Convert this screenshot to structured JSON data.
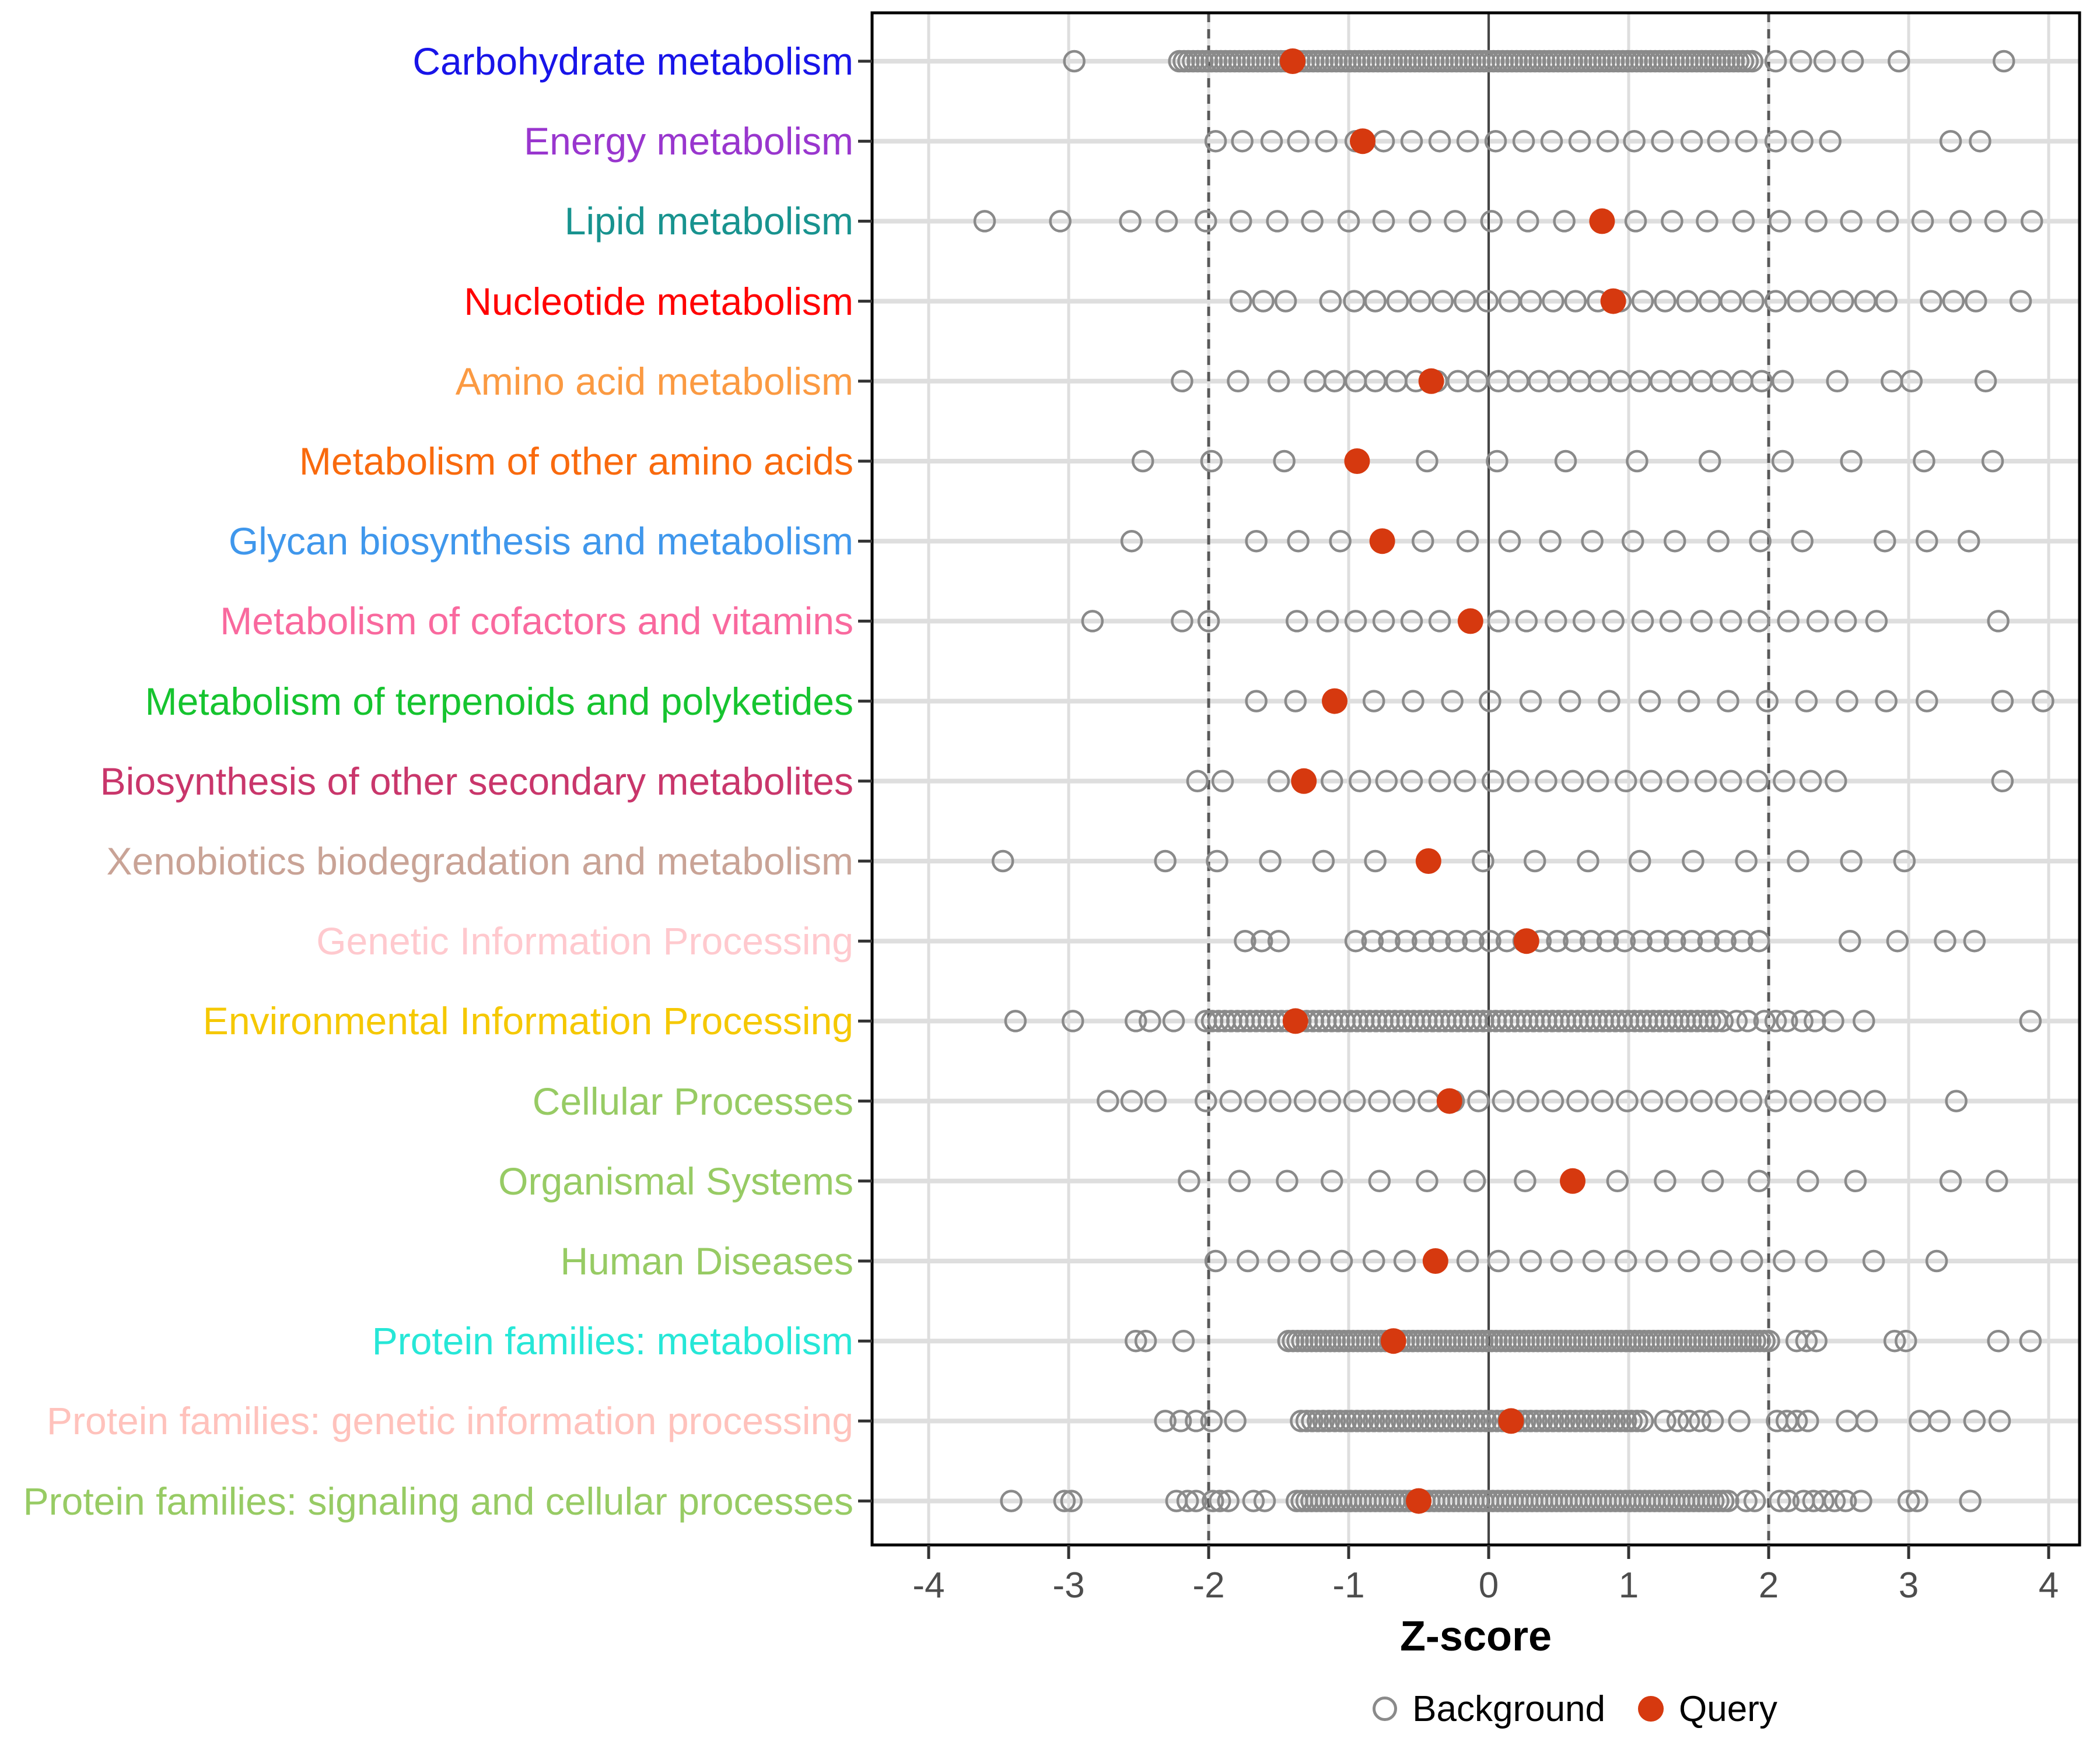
{
  "chart_data": {
    "type": "scatter",
    "title": "",
    "xlabel": "Z-score",
    "ylabel": "",
    "x_ticks": [
      -4,
      -3,
      -2,
      -1,
      0,
      1,
      2,
      3,
      4
    ],
    "xlim": [
      -4.4,
      4.23
    ],
    "grid": "major-both",
    "legend_position": "bottom",
    "reference_lines": {
      "zero_solid": 0,
      "dashed": [
        -2,
        2
      ]
    },
    "legend": {
      "background_label": "Background",
      "query_label": "Query"
    },
    "style_colors": {
      "query_dot": "#d6390f",
      "background_circle_stroke": "#8a8a8a",
      "grid_line": "#dedede",
      "dashed_line": "#585858",
      "zero_line": "#454545",
      "panel_border": "#000000",
      "tick_text": "#4d4d4d"
    },
    "categories": [
      {
        "label": "Carbohydrate metabolism",
        "color": "#1814e8",
        "query": -1.4,
        "bg_runs": [
          {
            "from": -2.21,
            "to": 1.9,
            "step": 0.033
          }
        ],
        "bg_points": [
          -2.96,
          2.05,
          2.23,
          2.4,
          2.6,
          2.93,
          3.68
        ]
      },
      {
        "label": "Energy metabolism",
        "color": "#9936ce",
        "query": -0.9,
        "bg_runs": [],
        "bg_points": [
          -1.95,
          -1.76,
          -1.55,
          -1.36,
          -1.16,
          -0.95,
          -0.75,
          -0.55,
          -0.35,
          -0.15,
          0.05,
          0.25,
          0.45,
          0.65,
          0.85,
          1.04,
          1.24,
          1.45,
          1.64,
          1.84,
          2.05,
          2.24,
          2.44,
          3.3,
          3.51
        ]
      },
      {
        "label": "Lipid metabolism",
        "color": "#18938f",
        "query": 0.81,
        "bg_runs": [],
        "bg_points": [
          -3.6,
          -3.06,
          -2.56,
          -2.3,
          -2.02,
          -1.77,
          -1.51,
          -1.26,
          -1.0,
          -0.75,
          -0.49,
          -0.24,
          0.02,
          0.28,
          0.54,
          1.05,
          1.31,
          1.56,
          1.82,
          2.08,
          2.34,
          2.59,
          2.85,
          3.1,
          3.37,
          3.62,
          3.88
        ]
      },
      {
        "label": "Nucleotide metabolism",
        "color": "#ff0000",
        "query": 0.89,
        "bg_runs": [],
        "bg_points": [
          -1.77,
          -1.61,
          -1.45,
          -1.13,
          -0.96,
          -0.81,
          -0.65,
          -0.49,
          -0.33,
          -0.17,
          -0.01,
          0.15,
          0.3,
          0.46,
          0.62,
          0.78,
          0.94,
          1.1,
          1.26,
          1.42,
          1.58,
          1.73,
          1.89,
          2.05,
          2.21,
          2.37,
          2.53,
          2.69,
          2.84,
          3.16,
          3.32,
          3.48,
          3.8
        ]
      },
      {
        "label": "Amino acid metabolism",
        "color": "#fb9a42",
        "query": -0.41,
        "bg_runs": [],
        "bg_points": [
          -2.19,
          -1.79,
          -1.5,
          -1.24,
          -1.1,
          -0.95,
          -0.81,
          -0.66,
          -0.52,
          -0.37,
          -0.22,
          -0.08,
          0.07,
          0.21,
          0.36,
          0.5,
          0.65,
          0.79,
          0.94,
          1.08,
          1.23,
          1.37,
          1.52,
          1.66,
          1.81,
          1.95,
          2.1,
          2.49,
          2.88,
          3.02,
          3.55
        ]
      },
      {
        "label": "Metabolism of other amino acids",
        "color": "#f96a0d",
        "query": -0.94,
        "bg_runs": [],
        "bg_points": [
          -2.47,
          -1.98,
          -1.46,
          -0.44,
          0.06,
          0.55,
          1.06,
          1.58,
          2.1,
          2.59,
          3.11,
          3.6
        ]
      },
      {
        "label": "Glycan biosynthesis and metabolism",
        "color": "#3f97ec",
        "query": -0.76,
        "bg_runs": [],
        "bg_points": [
          -2.55,
          -1.66,
          -1.36,
          -1.06,
          -0.47,
          -0.15,
          0.15,
          0.44,
          0.74,
          1.03,
          1.33,
          1.64,
          1.94,
          2.24,
          2.83,
          3.13,
          3.43
        ]
      },
      {
        "label": "Metabolism of cofactors and vitamins",
        "color": "#f9699e",
        "query": -0.13,
        "bg_runs": [],
        "bg_points": [
          -2.83,
          -2.19,
          -2.0,
          -1.37,
          -1.15,
          -0.95,
          -0.75,
          -0.55,
          -0.35,
          0.07,
          0.27,
          0.48,
          0.68,
          0.89,
          1.1,
          1.3,
          1.52,
          1.73,
          1.93,
          2.14,
          2.35,
          2.55,
          2.77,
          3.64
        ]
      },
      {
        "label": "Metabolism of terpenoids and polyketides",
        "color": "#16c42f",
        "query": -1.1,
        "bg_runs": [],
        "bg_points": [
          -1.66,
          -1.38,
          -0.82,
          -0.54,
          -0.26,
          0.01,
          0.3,
          0.58,
          0.86,
          1.15,
          1.43,
          1.71,
          1.99,
          2.27,
          2.56,
          2.84,
          3.13,
          3.67,
          3.96
        ]
      },
      {
        "label": "Biosynthesis of other secondary metabolites",
        "color": "#c9366b",
        "query": -1.32,
        "bg_runs": [],
        "bg_points": [
          -2.08,
          -1.9,
          -1.5,
          -1.12,
          -0.92,
          -0.73,
          -0.55,
          -0.35,
          -0.17,
          0.03,
          0.21,
          0.41,
          0.6,
          0.78,
          0.98,
          1.16,
          1.35,
          1.55,
          1.73,
          1.92,
          2.11,
          2.3,
          2.48,
          3.67
        ]
      },
      {
        "label": "Xenobiotics biodegradation and metabolism",
        "color": "#c9a396",
        "query": -0.43,
        "bg_runs": [],
        "bg_points": [
          -3.47,
          -2.31,
          -1.94,
          -1.56,
          -1.18,
          -0.81,
          -0.04,
          0.33,
          0.71,
          1.08,
          1.46,
          1.84,
          2.21,
          2.59,
          2.97
        ]
      },
      {
        "label": "Genetic Information Processing",
        "color": "#ffc9ce",
        "query": 0.27,
        "bg_runs": [
          {
            "from": -0.95,
            "to": 1.93,
            "step": 0.12
          }
        ],
        "bg_points": [
          -1.74,
          -1.62,
          -1.5,
          2.58,
          2.92,
          3.26,
          3.47
        ]
      },
      {
        "label": "Environmental Information Processing",
        "color": "#f5c800",
        "query": -1.38,
        "bg_runs": [
          {
            "from": -2.02,
            "to": 1.68,
            "step": 0.045
          }
        ],
        "bg_points": [
          -3.38,
          -2.97,
          -2.52,
          -2.42,
          -2.25,
          1.77,
          1.85,
          1.97,
          2.05,
          2.13,
          2.24,
          2.33,
          2.46,
          2.68,
          3.87
        ]
      },
      {
        "label": "Cellular Processes",
        "color": "#97cb64",
        "query": -0.28,
        "bg_runs": [
          {
            "from": -2.02,
            "to": 2.78,
            "step": 0.177
          }
        ],
        "bg_points": [
          -2.72,
          -2.55,
          -2.38,
          3.34
        ]
      },
      {
        "label": "Organismal Systems",
        "color": "#97cb64",
        "query": 0.6,
        "bg_runs": [],
        "bg_points": [
          -2.14,
          -1.78,
          -1.44,
          -1.12,
          -0.78,
          -0.44,
          -0.1,
          0.26,
          0.92,
          1.26,
          1.6,
          1.93,
          2.28,
          2.62,
          3.3,
          3.63
        ]
      },
      {
        "label": "Human Diseases",
        "color": "#97cb64",
        "query": -0.38,
        "bg_runs": [],
        "bg_points": [
          -1.95,
          -1.72,
          -1.5,
          -1.28,
          -1.05,
          -0.82,
          -0.6,
          -0.15,
          0.07,
          0.3,
          0.52,
          0.75,
          0.98,
          1.2,
          1.43,
          1.66,
          1.88,
          2.11,
          2.34,
          2.75,
          3.2
        ]
      },
      {
        "label": "Protein families: metabolism",
        "color": "#26e7d7",
        "query": -0.68,
        "bg_runs": [
          {
            "from": -1.43,
            "to": 2.03,
            "step": 0.033
          }
        ],
        "bg_points": [
          -2.52,
          -2.45,
          -2.18,
          2.2,
          2.27,
          2.34,
          2.9,
          2.98,
          3.64,
          3.87
        ]
      },
      {
        "label": "Protein families: genetic information processing",
        "color": "#ffc2bc",
        "query": 0.16,
        "bg_runs": [
          {
            "from": -1.34,
            "to": 1.12,
            "step": 0.04
          }
        ],
        "bg_points": [
          -2.31,
          -2.2,
          -2.09,
          -1.98,
          -1.81,
          1.26,
          1.35,
          1.43,
          1.51,
          1.6,
          1.79,
          2.06,
          2.13,
          2.2,
          2.28,
          2.56,
          2.7,
          3.08,
          3.22,
          3.47,
          3.65
        ]
      },
      {
        "label": "Protein families: signaling and cellular processes",
        "color": "#97cb64",
        "query": -0.5,
        "bg_runs": [
          {
            "from": -1.37,
            "to": 1.71,
            "step": 0.035
          }
        ],
        "bg_points": [
          -3.41,
          -3.03,
          -2.98,
          -2.23,
          -2.15,
          -2.09,
          -1.97,
          -1.92,
          -1.86,
          -1.68,
          -1.6,
          1.84,
          1.9,
          2.08,
          2.14,
          2.25,
          2.32,
          2.39,
          2.47,
          2.55,
          2.66,
          3.0,
          3.06,
          3.44
        ]
      }
    ]
  }
}
